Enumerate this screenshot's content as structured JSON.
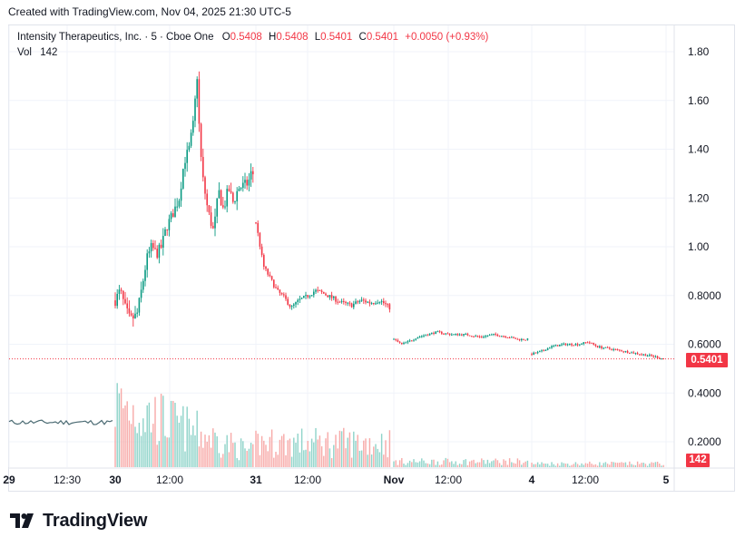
{
  "header": {
    "created": "Created with TradingView.com, Nov 04, 2025 21:30 UTC-5"
  },
  "legend": {
    "symbol": "Intensity Therapeutics, Inc. · 5 · Cboe One",
    "o_label": "O",
    "o_value": "0.5408",
    "h_label": "H",
    "h_value": "0.5408",
    "l_label": "L",
    "l_value": "0.5401",
    "c_label": "C",
    "c_value": "0.5401",
    "change": "+0.0050 (+0.93%)",
    "vol_label": "Vol",
    "vol_value": "142"
  },
  "price_tag": "0.5401",
  "volume_tag": "142",
  "brand": {
    "name": "TradingView"
  },
  "colors": {
    "up": "#089981",
    "down": "#f23645",
    "vol_up": "#8ed3c9",
    "vol_down": "#f7a9a7",
    "grid": "#f0f3fa",
    "axis_text": "#131722"
  },
  "chart_data": {
    "type": "candlestick",
    "interval": "5",
    "y_axis": {
      "ticks": [
        "1.80",
        "1.60",
        "1.40",
        "1.20",
        "1.00",
        "0.8000",
        "0.6000",
        "0.4000",
        "0.2000"
      ],
      "tick_values": [
        1.8,
        1.6,
        1.4,
        1.2,
        1.0,
        0.8,
        0.6,
        0.4,
        0.2
      ],
      "range": [
        0.1,
        1.9
      ]
    },
    "x_axis": {
      "ticks": [
        "29",
        "12:30",
        "30",
        "12:00",
        "31",
        "12:00",
        "Nov",
        "12:00",
        "4",
        "12:00",
        "5"
      ]
    },
    "last_price": 0.5401,
    "sessions": [
      {
        "label": "Oct 30",
        "points": [
          [
            0,
            0.78
          ],
          [
            5,
            0.82
          ],
          [
            10,
            0.75
          ],
          [
            15,
            0.7
          ],
          [
            22,
            0.72
          ],
          [
            27,
            0.83
          ],
          [
            32,
            0.95
          ],
          [
            37,
            1.0
          ],
          [
            42,
            0.97
          ],
          [
            47,
            1.0
          ],
          [
            52,
            1.08
          ],
          [
            58,
            1.13
          ],
          [
            65,
            1.2
          ],
          [
            70,
            1.35
          ],
          [
            75,
            1.4
          ],
          [
            80,
            1.52
          ],
          [
            83,
            1.72
          ],
          [
            86,
            1.42
          ],
          [
            89,
            1.28
          ],
          [
            94,
            1.15
          ],
          [
            100,
            1.06
          ],
          [
            105,
            1.23
          ],
          [
            110,
            1.15
          ],
          [
            115,
            1.24
          ],
          [
            120,
            1.18
          ],
          [
            125,
            1.24
          ],
          [
            130,
            1.25
          ],
          [
            135,
            1.26
          ],
          [
            138,
            1.3
          ],
          [
            140,
            1.3
          ]
        ]
      },
      {
        "label": "Oct 31",
        "points": [
          [
            0,
            1.1
          ],
          [
            8,
            0.92
          ],
          [
            15,
            0.87
          ],
          [
            22,
            0.82
          ],
          [
            30,
            0.79
          ],
          [
            37,
            0.75
          ],
          [
            45,
            0.78
          ],
          [
            55,
            0.8
          ],
          [
            62,
            0.82
          ],
          [
            70,
            0.81
          ],
          [
            80,
            0.79
          ],
          [
            90,
            0.77
          ],
          [
            100,
            0.76
          ],
          [
            110,
            0.78
          ],
          [
            120,
            0.77
          ],
          [
            130,
            0.78
          ],
          [
            140,
            0.75
          ]
        ]
      },
      {
        "label": "Nov 3",
        "points": [
          [
            0,
            0.62
          ],
          [
            8,
            0.6
          ],
          [
            15,
            0.61
          ],
          [
            25,
            0.63
          ],
          [
            35,
            0.64
          ],
          [
            45,
            0.65
          ],
          [
            60,
            0.64
          ],
          [
            75,
            0.64
          ],
          [
            90,
            0.63
          ],
          [
            105,
            0.64
          ],
          [
            120,
            0.63
          ],
          [
            130,
            0.62
          ],
          [
            140,
            0.62
          ]
        ]
      },
      {
        "label": "Nov 4",
        "points": [
          [
            0,
            0.56
          ],
          [
            10,
            0.57
          ],
          [
            20,
            0.59
          ],
          [
            35,
            0.6
          ],
          [
            50,
            0.6
          ],
          [
            60,
            0.61
          ],
          [
            70,
            0.59
          ],
          [
            85,
            0.58
          ],
          [
            100,
            0.57
          ],
          [
            115,
            0.56
          ],
          [
            130,
            0.55
          ],
          [
            140,
            0.5401
          ]
        ]
      }
    ],
    "premarket_line": {
      "from": "Oct 29",
      "to": "Oct 30",
      "approx_value": 0.28
    }
  }
}
